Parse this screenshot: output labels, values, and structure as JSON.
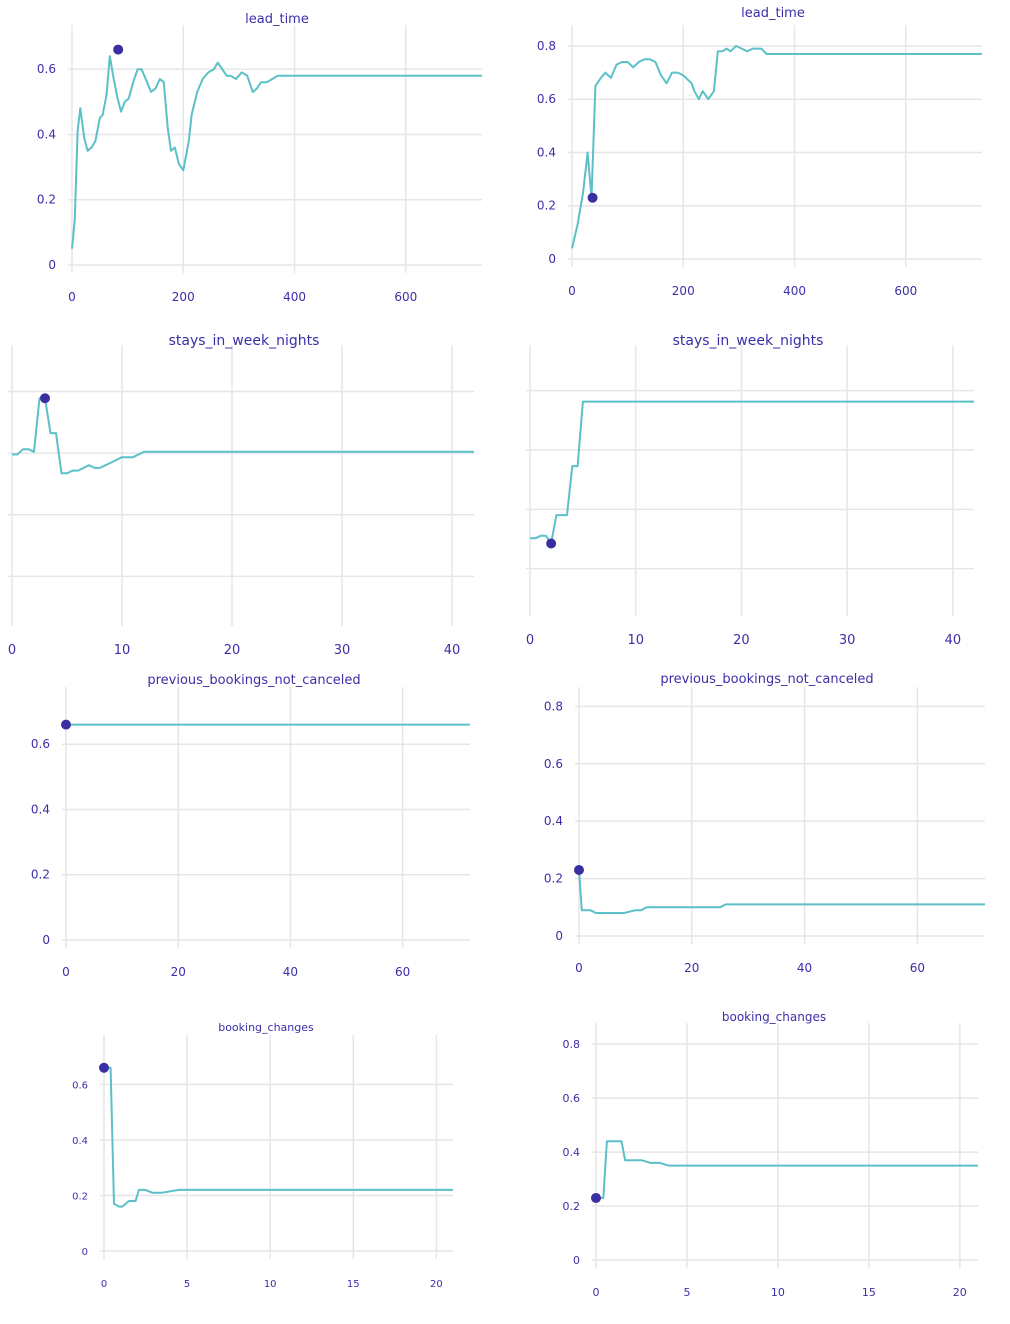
{
  "chart_data": [
    {
      "type": "line",
      "title": "lead_time",
      "xlim": [
        -5,
        737
      ],
      "ylim": [
        -0.02,
        0.72
      ],
      "xticks": [
        0,
        200,
        400,
        600
      ],
      "yticks": [
        0,
        0.2,
        0.4,
        0.6
      ],
      "grid": true,
      "colors": {
        "line": "#5bc0c7",
        "point": "#3a2fa0"
      },
      "x": [
        0,
        5,
        10,
        15,
        22,
        28,
        35,
        42,
        50,
        55,
        62,
        68,
        75,
        82,
        88,
        95,
        102,
        110,
        118,
        125,
        135,
        142,
        150,
        158,
        165,
        172,
        178,
        185,
        192,
        200,
        210,
        215,
        225,
        235,
        245,
        255,
        262,
        270,
        278,
        285,
        295,
        305,
        315,
        325,
        332,
        340,
        350,
        360,
        370,
        400,
        450,
        500,
        550,
        600,
        650,
        700,
        737
      ],
      "y": [
        0.05,
        0.14,
        0.41,
        0.48,
        0.39,
        0.35,
        0.36,
        0.38,
        0.45,
        0.46,
        0.52,
        0.64,
        0.57,
        0.51,
        0.47,
        0.5,
        0.51,
        0.56,
        0.6,
        0.6,
        0.56,
        0.53,
        0.54,
        0.57,
        0.56,
        0.42,
        0.35,
        0.36,
        0.31,
        0.29,
        0.38,
        0.46,
        0.53,
        0.57,
        0.59,
        0.6,
        0.62,
        0.6,
        0.58,
        0.58,
        0.57,
        0.59,
        0.58,
        0.53,
        0.54,
        0.56,
        0.56,
        0.57,
        0.58,
        0.58,
        0.58,
        0.58,
        0.58,
        0.58,
        0.58,
        0.58,
        0.58
      ],
      "point": {
        "x": 83,
        "y": 0.66
      }
    },
    {
      "type": "line",
      "title": "lead_time",
      "xlim": [
        -5,
        737
      ],
      "ylim": [
        -0.03,
        0.86
      ],
      "xticks": [
        0,
        200,
        400,
        600
      ],
      "yticks": [
        0,
        0.2,
        0.4,
        0.6,
        0.8
      ],
      "grid": true,
      "colors": {
        "line": "#5bc0c7",
        "point": "#3a2fa0"
      },
      "x": [
        0,
        10,
        20,
        28,
        35,
        42,
        52,
        60,
        70,
        80,
        90,
        100,
        110,
        120,
        130,
        140,
        150,
        160,
        170,
        180,
        190,
        200,
        210,
        215,
        220,
        228,
        235,
        245,
        255,
        262,
        270,
        278,
        285,
        295,
        305,
        315,
        325,
        332,
        340,
        350,
        360,
        400,
        450,
        500,
        550,
        600,
        650,
        700,
        737
      ],
      "y": [
        0.04,
        0.13,
        0.25,
        0.4,
        0.23,
        0.65,
        0.68,
        0.7,
        0.68,
        0.73,
        0.74,
        0.74,
        0.72,
        0.74,
        0.75,
        0.75,
        0.74,
        0.69,
        0.66,
        0.7,
        0.7,
        0.69,
        0.67,
        0.66,
        0.63,
        0.6,
        0.63,
        0.6,
        0.63,
        0.78,
        0.78,
        0.79,
        0.78,
        0.8,
        0.79,
        0.78,
        0.79,
        0.79,
        0.79,
        0.77,
        0.77,
        0.77,
        0.77,
        0.77,
        0.77,
        0.77,
        0.77,
        0.77,
        0.77
      ],
      "point": {
        "x": 37,
        "y": 0.23
      }
    },
    {
      "type": "line",
      "title": "stays_in_week_nights",
      "xlim": [
        0,
        42
      ],
      "ylim": [
        0,
        1
      ],
      "xticks": [
        0,
        10,
        20,
        30,
        40
      ],
      "yticks": [],
      "grid": true,
      "colors": {
        "line": "#5bc0c7",
        "point": "#3a2fa0"
      },
      "x": [
        0,
        0.5,
        1,
        1.5,
        2,
        2.5,
        3,
        3.5,
        4,
        4.5,
        5,
        5.5,
        6,
        6.5,
        7,
        7.5,
        8,
        8.5,
        9,
        9.5,
        10,
        10.5,
        11,
        11.5,
        12,
        12.5,
        13,
        13.5,
        14,
        15,
        17,
        20,
        25,
        30,
        35,
        40,
        42
      ],
      "y": [
        0.61,
        0.61,
        0.63,
        0.63,
        0.62,
        0.82,
        0.82,
        0.69,
        0.69,
        0.54,
        0.54,
        0.55,
        0.55,
        0.56,
        0.57,
        0.56,
        0.56,
        0.57,
        0.58,
        0.59,
        0.6,
        0.6,
        0.6,
        0.61,
        0.62,
        0.62,
        0.62,
        0.62,
        0.62,
        0.62,
        0.62,
        0.62,
        0.62,
        0.62,
        0.62,
        0.62,
        0.62
      ],
      "point": {
        "x": 3,
        "y": 0.82
      }
    },
    {
      "type": "line",
      "title": "stays_in_week_nights",
      "xlim": [
        0,
        42
      ],
      "ylim": [
        0,
        1
      ],
      "xticks": [
        0,
        10,
        20,
        30,
        40
      ],
      "yticks": [],
      "grid": true,
      "colors": {
        "line": "#5bc0c7",
        "point": "#3a2fa0"
      },
      "x": [
        0,
        0.5,
        1,
        1.5,
        2,
        2.5,
        3,
        3.5,
        4,
        4.5,
        5,
        5.5,
        6,
        6.5,
        7,
        8,
        10,
        15,
        20,
        25,
        30,
        35,
        40,
        42
      ],
      "y": [
        0.27,
        0.27,
        0.28,
        0.28,
        0.25,
        0.36,
        0.36,
        0.36,
        0.55,
        0.55,
        0.8,
        0.8,
        0.8,
        0.8,
        0.8,
        0.8,
        0.8,
        0.8,
        0.8,
        0.8,
        0.8,
        0.8,
        0.8,
        0.8
      ],
      "point": {
        "x": 2,
        "y": 0.25
      }
    },
    {
      "type": "line",
      "title": "previous_bookings_not_canceled",
      "xlim": [
        -3,
        72
      ],
      "ylim": [
        -0.02,
        0.76
      ],
      "xticks": [
        0,
        20,
        40,
        60
      ],
      "yticks": [
        0,
        0.2,
        0.4,
        0.6
      ],
      "grid": true,
      "colors": {
        "line": "#5bc0c7",
        "point": "#3a2fa0"
      },
      "x": [
        0,
        10,
        20,
        30,
        40,
        50,
        60,
        72
      ],
      "y": [
        0.66,
        0.66,
        0.66,
        0.66,
        0.66,
        0.66,
        0.66,
        0.66
      ],
      "point": {
        "x": 0,
        "y": 0.66
      }
    },
    {
      "type": "line",
      "title": "previous_bookings_not_canceled",
      "xlim": [
        -3,
        72
      ],
      "ylim": [
        -0.03,
        0.85
      ],
      "xticks": [
        0,
        20,
        40,
        60
      ],
      "yticks": [
        0,
        0.2,
        0.4,
        0.6,
        0.8
      ],
      "grid": true,
      "colors": {
        "line": "#5bc0c7",
        "point": "#3a2fa0"
      },
      "x": [
        0,
        0.5,
        1,
        2,
        3,
        4,
        6,
        8,
        10,
        11,
        12,
        15,
        20,
        25,
        26,
        30,
        40,
        50,
        60,
        72
      ],
      "y": [
        0.23,
        0.09,
        0.09,
        0.09,
        0.08,
        0.08,
        0.08,
        0.08,
        0.09,
        0.09,
        0.1,
        0.1,
        0.1,
        0.1,
        0.11,
        0.11,
        0.11,
        0.11,
        0.11,
        0.11
      ],
      "point": {
        "x": 0,
        "y": 0.23
      }
    },
    {
      "type": "line",
      "title": "booking_changes",
      "xlim": [
        -1,
        21
      ],
      "ylim": [
        -0.03,
        0.76
      ],
      "xticks": [
        0,
        5,
        10,
        15,
        20
      ],
      "yticks": [
        0,
        0.2,
        0.4,
        0.6
      ],
      "grid": true,
      "colors": {
        "line": "#5bc0c7",
        "point": "#3a2fa0"
      },
      "x": [
        0,
        0.4,
        0.6,
        0.9,
        1.1,
        1.5,
        1.9,
        2.1,
        2.5,
        2.9,
        3.5,
        4.5,
        5,
        10,
        15,
        21
      ],
      "y": [
        0.66,
        0.66,
        0.17,
        0.16,
        0.16,
        0.18,
        0.18,
        0.22,
        0.22,
        0.21,
        0.21,
        0.22,
        0.22,
        0.22,
        0.22,
        0.22
      ],
      "point": {
        "x": 0,
        "y": 0.66
      }
    },
    {
      "type": "line",
      "title": "booking_changes",
      "xlim": [
        -1,
        21
      ],
      "ylim": [
        -0.03,
        0.86
      ],
      "xticks": [
        0,
        5,
        10,
        15,
        20
      ],
      "yticks": [
        0,
        0.2,
        0.4,
        0.6,
        0.8
      ],
      "grid": true,
      "colors": {
        "line": "#5bc0c7",
        "point": "#3a2fa0"
      },
      "x": [
        0,
        0.4,
        0.6,
        1,
        1.4,
        1.6,
        2,
        2.5,
        3,
        3.5,
        4,
        5,
        10,
        15,
        21
      ],
      "y": [
        0.23,
        0.23,
        0.44,
        0.44,
        0.44,
        0.37,
        0.37,
        0.37,
        0.36,
        0.36,
        0.35,
        0.35,
        0.35,
        0.35,
        0.35
      ],
      "point": {
        "x": 0,
        "y": 0.23
      }
    }
  ]
}
